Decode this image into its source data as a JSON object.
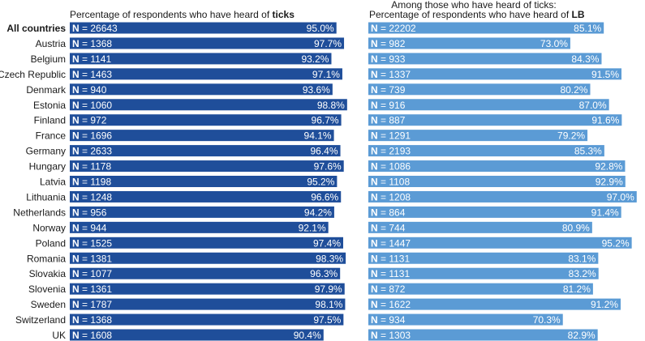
{
  "chart_data": [
    {
      "type": "bar",
      "orientation": "horizontal",
      "title_prefix": "Percentage of respondents who have heard of ",
      "title_bold": "ticks",
      "color": "#1f4e9a",
      "xlim": [
        0,
        100
      ],
      "categories": [
        "All countries",
        "Austria",
        "Belgium",
        "Czech Republic",
        "Denmark",
        "Estonia",
        "Finland",
        "France",
        "Germany",
        "Hungary",
        "Latvia",
        "Lithuania",
        "Netherlands",
        "Norway",
        "Poland",
        "Romania",
        "Slovakia",
        "Slovenia",
        "Sweden",
        "Switzerland",
        "UK"
      ],
      "n_labels": [
        "N = 26643",
        "N = 1368",
        "N = 1141",
        "N = 1463",
        "N = 940",
        "N = 1060",
        "N = 972",
        "N = 1696",
        "N = 2633",
        "N = 1178",
        "N = 1198",
        "N = 1248",
        "N = 956",
        "N = 944",
        "N = 1525",
        "N = 1381",
        "N = 1077",
        "N = 1361",
        "N = 1787",
        "N = 1368",
        "N = 1608"
      ],
      "values": [
        95.0,
        97.7,
        93.2,
        97.1,
        93.6,
        98.8,
        96.7,
        94.1,
        96.4,
        97.6,
        95.2,
        96.6,
        94.2,
        92.1,
        97.4,
        98.3,
        96.3,
        97.9,
        98.1,
        97.5,
        90.4
      ],
      "value_labels": [
        "95.0%",
        "97.7%",
        "93.2%",
        "97.1%",
        "93.6%",
        "98.8%",
        "96.7%",
        "94.1%",
        "96.4%",
        "97.6%",
        "95.2%",
        "96.6%",
        "94.2%",
        "92.1%",
        "97.4%",
        "98.3%",
        "96.3%",
        "97.9%",
        "98.1%",
        "97.5%",
        "90.4%"
      ]
    },
    {
      "type": "bar",
      "orientation": "horizontal",
      "title_line1": "Among those who have heard of ticks:",
      "title_prefix": "Percentage of respondents who have heard of ",
      "title_bold": "LB",
      "color": "#5b9bd5",
      "xlim": [
        0,
        100
      ],
      "n_labels": [
        "N = 22202",
        "N = 982",
        "N = 933",
        "N = 1337",
        "N = 739",
        "N = 916",
        "N = 887",
        "N = 1291",
        "N = 2193",
        "N = 1086",
        "N = 1108",
        "N = 1208",
        "N = 864",
        "N = 744",
        "N = 1447",
        "N = 1131",
        "N = 1131",
        "N = 872",
        "N = 1622",
        "N = 934",
        "N = 1303"
      ],
      "values": [
        85.1,
        73.0,
        84.3,
        91.5,
        80.2,
        87.0,
        91.6,
        79.2,
        85.3,
        92.8,
        92.9,
        97.0,
        91.4,
        80.9,
        95.2,
        83.1,
        83.2,
        81.2,
        91.2,
        70.3,
        82.9
      ],
      "value_labels": [
        "85.1%",
        "73.0%",
        "84.3%",
        "91.5%",
        "80.2%",
        "87.0%",
        "91.6%",
        "79.2%",
        "85.3%",
        "92.8%",
        "92.9%",
        "97.0%",
        "91.4%",
        "80.9%",
        "95.2%",
        "83.1%",
        "83.2%",
        "81.2%",
        "91.2%",
        "70.3%",
        "82.9%"
      ]
    }
  ]
}
